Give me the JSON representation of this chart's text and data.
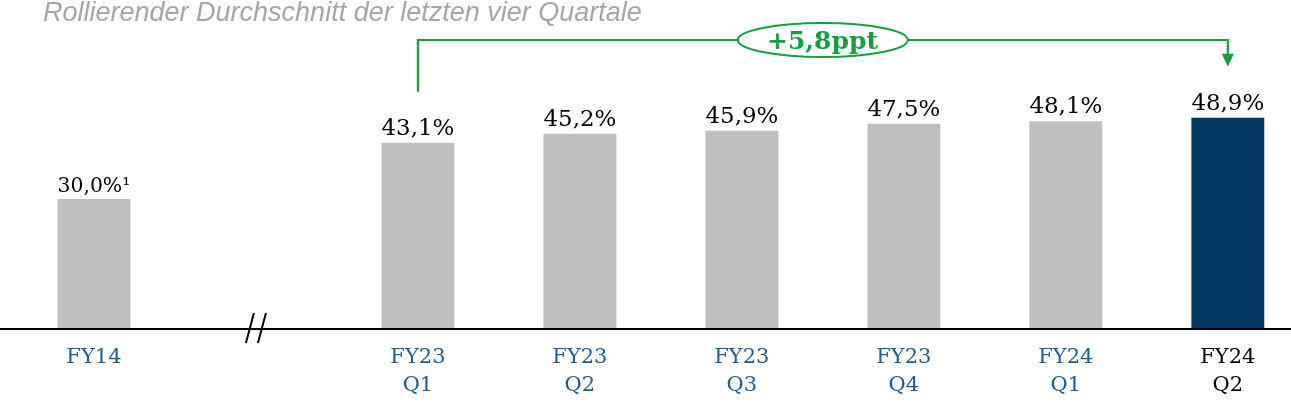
{
  "chart_data": {
    "type": "bar",
    "title": "Rollierender Durchschnitt der letzten vier Quartale",
    "categories": [
      "FY14",
      null,
      "FY23\nQ1",
      "FY23\nQ2",
      "FY23\nQ3",
      "FY23\nQ4",
      "FY24\nQ1",
      "FY24\nQ2"
    ],
    "values": [
      30.0,
      null,
      43.1,
      45.2,
      45.9,
      47.5,
      48.1,
      48.9
    ],
    "colors": [
      "#bfbfbf",
      "#bfbfbf",
      "#bfbfbf",
      "#bfbfbf",
      "#bfbfbf",
      "#bfbfbf",
      "#bfbfbf",
      "#00365f"
    ],
    "value_labels": [
      "30,0%¹",
      null,
      "43,1%",
      "45,2%",
      "45,9%",
      "47,5%",
      "48,1%",
      "48,9%"
    ],
    "annotations": [
      "+5,8ppt"
    ]
  }
}
